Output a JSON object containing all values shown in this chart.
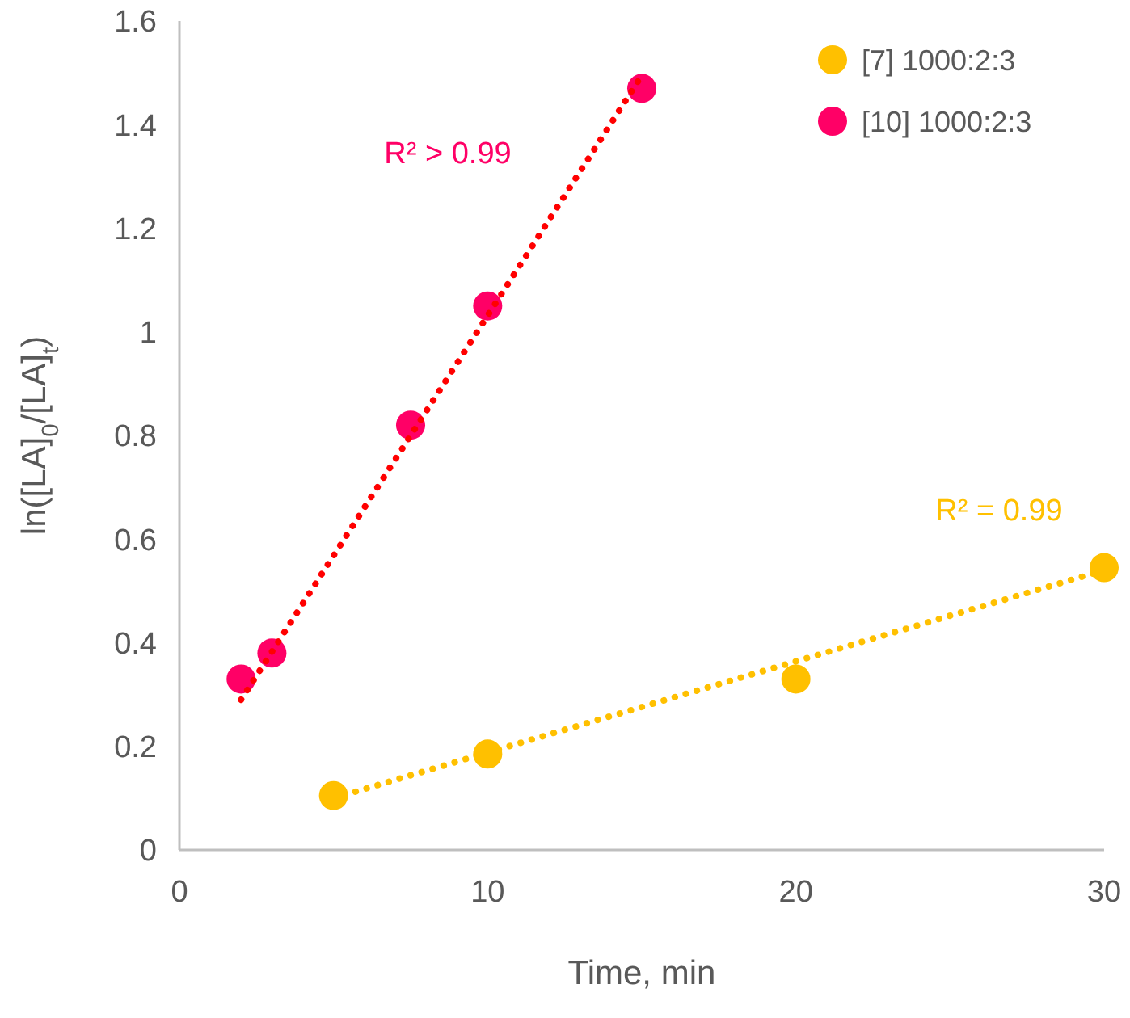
{
  "chart_data": {
    "type": "scatter",
    "xlabel": "Time, min",
    "ylabel": "ln([LA]$_{0}$/[LA]$_{t}$)",
    "xlim": [
      0,
      30
    ],
    "xticks": [
      0,
      10,
      20,
      30
    ],
    "ylim": [
      0,
      1.6
    ],
    "yticks": [
      0,
      0.2,
      0.4,
      0.6,
      0.8,
      1,
      1.2,
      1.4,
      1.6
    ],
    "grid": false,
    "legend": "top right",
    "marker": "circle",
    "series": [
      {
        "name": "[7] 1000:2:3",
        "color": "#ffc000",
        "x": [
          5,
          10,
          20,
          30
        ],
        "values": [
          0.105,
          0.185,
          0.33,
          0.545
        ]
      },
      {
        "name": "[10] 1000:2:3",
        "color": "#ff0066",
        "x": [
          2,
          3,
          7.5,
          10,
          15
        ],
        "values": [
          0.33,
          0.38,
          0.82,
          1.05,
          1.47
        ]
      },
      {
        "type": "line",
        "color": "#ffc000",
        "line_style": "dotted",
        "marker": "none",
        "x": [
          5,
          30
        ],
        "values": [
          0.1,
          0.54
        ]
      },
      {
        "type": "line",
        "color": "#ff0000",
        "line_style": "dotted",
        "marker": "none",
        "x": [
          2,
          15
        ],
        "values": [
          0.29,
          1.495
        ]
      }
    ],
    "annotations": [
      "R² = 0.99",
      "R² > 0.99"
    ]
  }
}
